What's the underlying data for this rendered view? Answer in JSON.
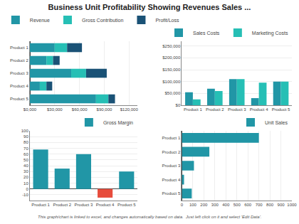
{
  "title": "Business Unit Profitability Showing Revenues Sales ...",
  "annotations": [
    "This graph/chart is linked to excel, and changes automatically based on data.  Just left click on it and select 'Edit Data'."
  ],
  "chart_data": [
    {
      "type": "bar",
      "orientation": "horizontal",
      "stacked": true,
      "categories": [
        "Product 5",
        "Product 4",
        "Product 3",
        "Product 2",
        "Product 1"
      ],
      "series": [
        {
          "name": "Revenue",
          "color": "#2196A6",
          "values": [
            80000,
            12000,
            50000,
            20000,
            30000
          ]
        },
        {
          "name": "Gross Contribution",
          "color": "#26BFB5",
          "values": [
            15000,
            8000,
            18000,
            8000,
            15000
          ]
        },
        {
          "name": "Profit/Loss",
          "color": "#1A5276",
          "values": [
            8000,
            7000,
            25000,
            8000,
            18000
          ]
        }
      ],
      "xlim": [
        0,
        130000
      ],
      "xticks": [
        {
          "value": 0,
          "label": "$0,000"
        },
        {
          "value": 30000,
          "label": "$30,000"
        },
        {
          "value": 60000,
          "label": "$60,000"
        },
        {
          "value": 90000,
          "label": "$90,000"
        },
        {
          "value": 120000,
          "label": "$120,000"
        }
      ],
      "grid": true,
      "legend": "top left"
    },
    {
      "type": "bar",
      "categories": [
        "Product 1",
        "Product 2",
        "Product 3",
        "Product 4",
        "Product 5"
      ],
      "series": [
        {
          "name": "Sales Costs",
          "color": "#2196A6",
          "values": [
            55000,
            70000,
            110000,
            30000,
            100000
          ]
        },
        {
          "name": "Marketing Costs",
          "color": "#26BFB5",
          "values": [
            25000,
            60000,
            110000,
            95000,
            100000
          ]
        }
      ],
      "ylim": [
        0,
        270000
      ],
      "yticks": [
        {
          "value": 0,
          "label": "$0"
        },
        {
          "value": 50000,
          "label": "$50,000"
        },
        {
          "value": 100000,
          "label": "$100,000"
        },
        {
          "value": 150000,
          "label": "$150,000"
        },
        {
          "value": 200000,
          "label": "$200,000"
        },
        {
          "value": 250000,
          "label": "$250,000"
        }
      ],
      "grid": true,
      "legend": "top right"
    },
    {
      "type": "bar",
      "categories": [
        "Product 1",
        "Product 2",
        "Product 3",
        "Product 4",
        "Product 5"
      ],
      "series": [
        {
          "name": "Gross Margin",
          "colors": [
            "#2196A6",
            "#2196A6",
            "#2196A6",
            "#E74C3C",
            "#2196A6"
          ],
          "values": [
            68,
            35,
            60,
            -15,
            30
          ]
        }
      ],
      "ylim": [
        -20,
        100
      ],
      "yticks": [
        -10,
        0,
        10,
        20,
        30,
        40,
        50,
        60,
        70,
        80,
        90,
        100
      ],
      "grid": true,
      "legend": "top right"
    },
    {
      "type": "bar",
      "orientation": "horizontal",
      "categories": [
        "Product 5",
        "Product 4",
        "Product 3",
        "Product 2",
        "Product 1"
      ],
      "series": [
        {
          "name": "Unit Sales",
          "color": "#2196A6",
          "values": [
            90,
            20,
            110,
            250,
            700
          ]
        }
      ],
      "xlim": [
        0,
        1000
      ],
      "xticks": [
        0,
        100,
        200,
        300,
        400,
        500,
        600,
        700,
        800,
        900,
        1000
      ],
      "grid": true,
      "legend": "top right"
    }
  ]
}
